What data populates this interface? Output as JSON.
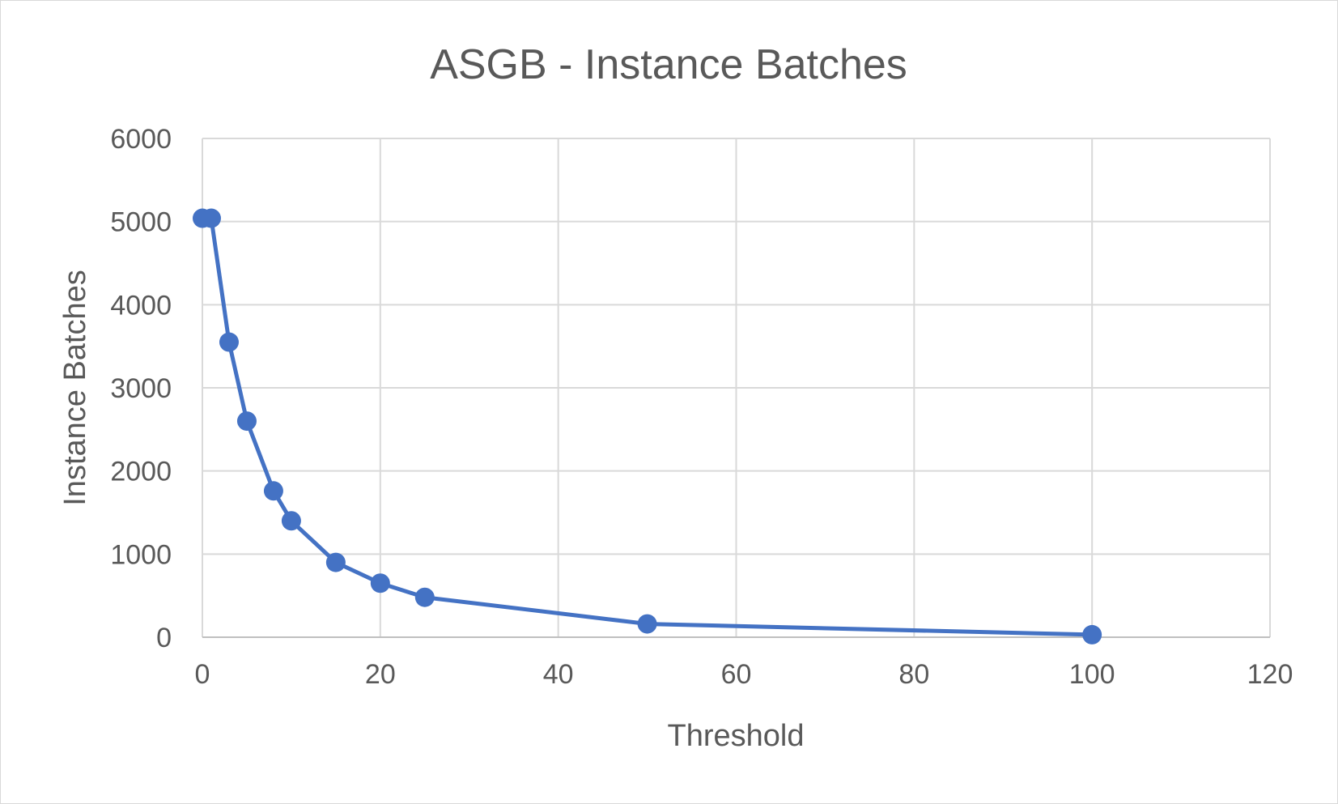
{
  "chart_data": {
    "type": "scatter",
    "title": "ASGB - Instance Batches",
    "xlabel": "Threshold",
    "ylabel": "Instance Batches",
    "xlim": [
      0,
      120
    ],
    "ylim": [
      0,
      6000
    ],
    "xticks": [
      "0",
      "20",
      "40",
      "60",
      "80",
      "100",
      "120"
    ],
    "yticks": [
      "0",
      "1000",
      "2000",
      "3000",
      "4000",
      "5000",
      "6000"
    ],
    "grid": true,
    "legend": "none",
    "series": [
      {
        "color": "#4472c4",
        "line": "straight",
        "markers": true,
        "points": [
          {
            "x": 0,
            "y": 5040
          },
          {
            "x": 1,
            "y": 5040
          },
          {
            "x": 3,
            "y": 3550
          },
          {
            "x": 5,
            "y": 2600
          },
          {
            "x": 8,
            "y": 1760
          },
          {
            "x": 10,
            "y": 1400
          },
          {
            "x": 15,
            "y": 900
          },
          {
            "x": 20,
            "y": 650
          },
          {
            "x": 25,
            "y": 480
          },
          {
            "x": 50,
            "y": 160
          },
          {
            "x": 100,
            "y": 30
          }
        ]
      }
    ]
  }
}
